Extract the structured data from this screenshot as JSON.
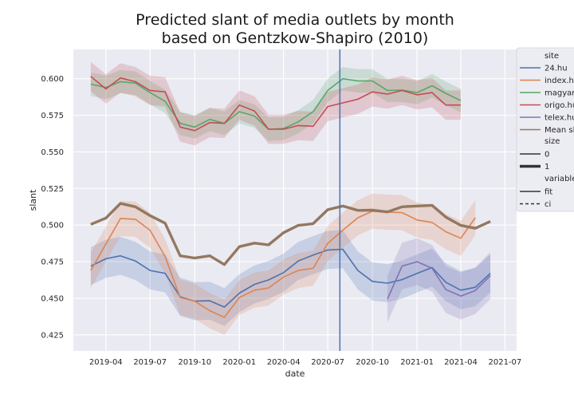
{
  "chart_data": {
    "type": "line",
    "title": "Predicted slant of media outlets by month",
    "subtitle": "based on Gentzkow-Shapiro (2010)",
    "xlabel": "date",
    "ylabel": "slant",
    "x_tick_labels": [
      "2019-04",
      "2019-07",
      "2019-10",
      "2020-01",
      "2020-04",
      "2020-07",
      "2020-10",
      "2021-01",
      "2021-04",
      "2021-07"
    ],
    "y_tick_labels": [
      "0.425",
      "0.450",
      "0.475",
      "0.500",
      "0.525",
      "0.550",
      "0.575",
      "0.600"
    ],
    "ylim": [
      0.414,
      0.62
    ],
    "xlim": [
      "2019-01-24",
      "2021-07-25"
    ],
    "grid": true,
    "vertical_line": {
      "date": "2020-07-26",
      "color": "#4c72b0"
    },
    "legend": {
      "placement": "right",
      "site_title": "site",
      "size_title": "size",
      "variable_title": "variable",
      "sites": [
        {
          "label": "24.hu",
          "color": "#4c72b0"
        },
        {
          "label": "index.hu",
          "color": "#dd8452"
        },
        {
          "label": "magyar",
          "color": "#55a868"
        },
        {
          "label": "origo.hu",
          "color": "#c44e52"
        },
        {
          "label": "telex.hu",
          "color": "#8172b3"
        },
        {
          "label": "Mean sl",
          "color": "#937860"
        }
      ],
      "sizes": [
        "0",
        "1"
      ],
      "variables": [
        "fit",
        "ci"
      ]
    },
    "dates": [
      "2019-03-01",
      "2019-04-01",
      "2019-05-01",
      "2019-06-01",
      "2019-07-01",
      "2019-08-01",
      "2019-09-01",
      "2019-10-01",
      "2019-11-01",
      "2019-12-01",
      "2020-01-01",
      "2020-02-01",
      "2020-03-01",
      "2020-04-01",
      "2020-05-01",
      "2020-06-01",
      "2020-07-01",
      "2020-08-01",
      "2020-09-01",
      "2020-10-01",
      "2020-11-01",
      "2020-12-01",
      "2021-01-01",
      "2021-02-01",
      "2021-03-01",
      "2021-04-01",
      "2021-05-01",
      "2021-06-01"
    ],
    "series": [
      {
        "name": "24.hu",
        "color": "#4c72b0",
        "width": 1.6,
        "values": [
          0.472,
          0.477,
          0.479,
          0.4755,
          0.469,
          0.467,
          0.451,
          0.448,
          0.4483,
          0.444,
          0.4535,
          0.4595,
          0.4625,
          0.4675,
          0.4755,
          0.4795,
          0.483,
          0.4835,
          0.469,
          0.4615,
          0.4603,
          0.4627,
          0.467,
          0.471,
          0.461,
          0.4555,
          0.4575,
          0.467
        ],
        "ci_half": 0.013
      },
      {
        "name": "index.hu",
        "color": "#dd8452",
        "width": 1.6,
        "values": [
          0.469,
          0.487,
          0.5045,
          0.504,
          0.4965,
          0.4785,
          0.4505,
          0.448,
          0.4415,
          0.437,
          0.4505,
          0.4555,
          0.457,
          0.4645,
          0.469,
          0.4705,
          0.4875,
          0.4965,
          0.505,
          0.5095,
          0.5088,
          0.5085,
          0.5035,
          0.5018,
          0.4955,
          0.491,
          0.505,
          null
        ],
        "ci_half": 0.012
      },
      {
        "name": "magyar",
        "color": "#55a868",
        "width": 1.6,
        "values": [
          0.5963,
          0.594,
          0.598,
          0.597,
          0.5905,
          0.5845,
          0.5695,
          0.567,
          0.5722,
          0.5695,
          0.5775,
          0.5745,
          0.5655,
          0.566,
          0.5705,
          0.5775,
          0.592,
          0.6,
          0.5985,
          0.5985,
          0.592,
          0.5922,
          0.5905,
          0.5952,
          0.59,
          0.585,
          null,
          null
        ],
        "ci_half": 0.008
      },
      {
        "name": "origo.hu",
        "color": "#c44e52",
        "width": 1.6,
        "values": [
          0.6015,
          0.593,
          0.6005,
          0.598,
          0.592,
          0.591,
          0.567,
          0.5645,
          0.57,
          0.5695,
          0.582,
          0.578,
          0.5655,
          0.5655,
          0.568,
          0.5675,
          0.581,
          0.5835,
          0.586,
          0.591,
          0.5895,
          0.592,
          0.589,
          0.5905,
          0.582,
          0.582,
          null,
          null
        ],
        "ci_half": 0.01
      },
      {
        "name": "telex.hu",
        "color": "#8172b3",
        "width": 1.6,
        "values": [
          null,
          null,
          null,
          null,
          null,
          null,
          null,
          null,
          null,
          null,
          null,
          null,
          null,
          null,
          null,
          null,
          null,
          null,
          null,
          null,
          0.4495,
          0.472,
          0.475,
          0.4705,
          0.456,
          0.4515,
          0.4553,
          0.4655
        ],
        "ci_half": 0.016
      },
      {
        "name": "Mean sl",
        "color": "#937860",
        "width": 3.4,
        "values": [
          0.5005,
          0.5048,
          0.5148,
          0.5125,
          0.5065,
          0.5013,
          0.479,
          0.4775,
          0.479,
          0.473,
          0.4853,
          0.4877,
          0.4865,
          0.4948,
          0.4998,
          0.501,
          0.5105,
          0.513,
          0.51,
          0.5102,
          0.509,
          0.5125,
          0.513,
          0.5135,
          0.5055,
          0.4998,
          0.4978,
          0.5025
        ],
        "ci_half": 0
      }
    ]
  }
}
